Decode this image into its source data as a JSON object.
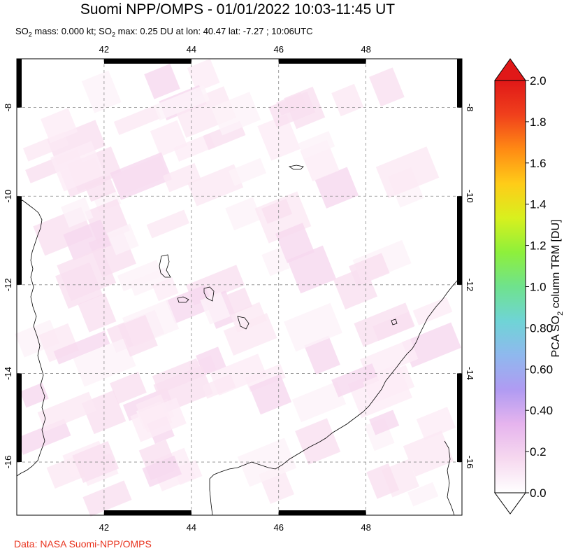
{
  "header": {
    "title": "Suomi NPP/OMPS - 01/01/2022 10:03-11:45 UT",
    "subtitle_parts": [
      "SO",
      "2",
      " mass: 0.000 kt; SO",
      "2",
      " max: 0.25 DU at lon: 40.47 lat: -7.27 ; 10:06UTC"
    ]
  },
  "map": {
    "lon_range": [
      40.0,
      50.2
    ],
    "lat_range": [
      -17.2,
      -6.9
    ],
    "lon_ticks": [
      42,
      44,
      46,
      48
    ],
    "lat_ticks": [
      -8,
      -10,
      -12,
      -14,
      -16
    ],
    "lon_tick_labels": [
      "42",
      "44",
      "46",
      "48"
    ],
    "lat_tick_labels": [
      "-8",
      "-10",
      "-12",
      "-14",
      "-16"
    ],
    "gridlines": true,
    "coast_color": "#000000",
    "grid_color": "#888888"
  },
  "colorbar": {
    "title_parts": [
      "PCA SO",
      "2",
      " column TRM [DU]"
    ],
    "min": 0.0,
    "max": 2.0,
    "tick_labels": [
      "2.0",
      "1.8",
      "1.6",
      "1.4",
      "1.2",
      "1.0",
      "0.80",
      "0.60",
      "0.40",
      "0.2",
      "0.0"
    ],
    "colors": [
      "#ffffff",
      "#f6d8ef",
      "#e6b4ee",
      "#b09bf2",
      "#8fb8ee",
      "#6fd4d6",
      "#6fe28d",
      "#8ef03b",
      "#d8f01e",
      "#ffcc18",
      "#ff8a14",
      "#f0401c",
      "#e01818"
    ]
  },
  "credit": "Data: NASA Suomi-NPP/OMPS"
}
